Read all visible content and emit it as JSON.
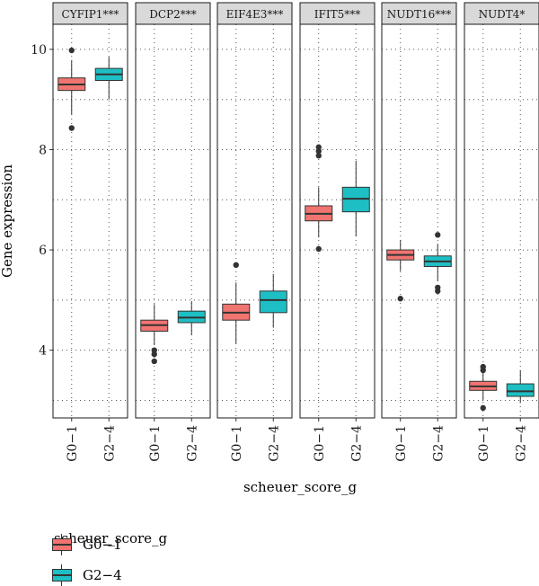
{
  "chart_data": {
    "type": "box",
    "ylabel": "Gene expression",
    "xlabel": "scheuer_score_g",
    "ylim": [
      2.65,
      10.5
    ],
    "yticks": [
      4,
      6,
      8,
      10
    ],
    "categories": [
      "G0−1",
      "G2−4"
    ],
    "colors": {
      "G0-1": "#f07470",
      "G2-4": "#1ebfc4"
    },
    "panels": [
      {
        "name": "CYFIP1***",
        "boxes": [
          {
            "group": "G0−1",
            "min": 8.7,
            "q1": 9.18,
            "median": 9.3,
            "q3": 9.43,
            "max": 9.78,
            "outliers": [
              9.98,
              8.43
            ]
          },
          {
            "group": "G2−4",
            "min": 9.0,
            "q1": 9.38,
            "median": 9.5,
            "q3": 9.62,
            "max": 9.85,
            "outliers": []
          }
        ]
      },
      {
        "name": "DCP2***",
        "boxes": [
          {
            "group": "G0−1",
            "min": 4.1,
            "q1": 4.38,
            "median": 4.5,
            "q3": 4.6,
            "max": 4.92,
            "outliers": [
              4.0,
              3.92,
              3.78
            ]
          },
          {
            "group": "G2−4",
            "min": 4.3,
            "q1": 4.55,
            "median": 4.65,
            "q3": 4.78,
            "max": 4.98,
            "outliers": []
          }
        ]
      },
      {
        "name": "EIF4E3***",
        "boxes": [
          {
            "group": "G0−1",
            "min": 4.13,
            "q1": 4.6,
            "median": 4.75,
            "q3": 4.92,
            "max": 5.35,
            "outliers": [
              5.7
            ]
          },
          {
            "group": "G2−4",
            "min": 4.45,
            "q1": 4.75,
            "median": 5.0,
            "q3": 5.18,
            "max": 5.52,
            "outliers": []
          }
        ]
      },
      {
        "name": "IFIT5***",
        "boxes": [
          {
            "group": "G0−1",
            "min": 6.25,
            "q1": 6.58,
            "median": 6.72,
            "q3": 6.88,
            "max": 7.25,
            "outliers": [
              8.05,
              7.97,
              7.88,
              6.02
            ]
          },
          {
            "group": "G2−4",
            "min": 6.27,
            "q1": 6.76,
            "median": 7.02,
            "q3": 7.25,
            "max": 7.78,
            "outliers": []
          }
        ]
      },
      {
        "name": "NUDT16***",
        "boxes": [
          {
            "group": "G0−1",
            "min": 5.58,
            "q1": 5.8,
            "median": 5.9,
            "q3": 6.0,
            "max": 6.2,
            "outliers": [
              5.03
            ]
          },
          {
            "group": "G2−4",
            "min": 5.38,
            "q1": 5.67,
            "median": 5.77,
            "q3": 5.88,
            "max": 6.12,
            "outliers": [
              6.3,
              5.25,
              5.18
            ]
          }
        ]
      },
      {
        "name": "NUDT4*",
        "boxes": [
          {
            "group": "G0−1",
            "min": 3.0,
            "q1": 3.2,
            "median": 3.28,
            "q3": 3.38,
            "max": 3.55,
            "outliers": [
              3.67,
              3.6,
              2.85
            ]
          },
          {
            "group": "G2−4",
            "min": 2.95,
            "q1": 3.08,
            "median": 3.18,
            "q3": 3.33,
            "max": 3.6,
            "outliers": []
          }
        ]
      }
    ]
  },
  "legend": {
    "title": "scheuer_score_g",
    "items": [
      {
        "label": "G0−1",
        "color": "#f07470"
      },
      {
        "label": "G2−4",
        "color": "#1ebfc4"
      }
    ]
  }
}
